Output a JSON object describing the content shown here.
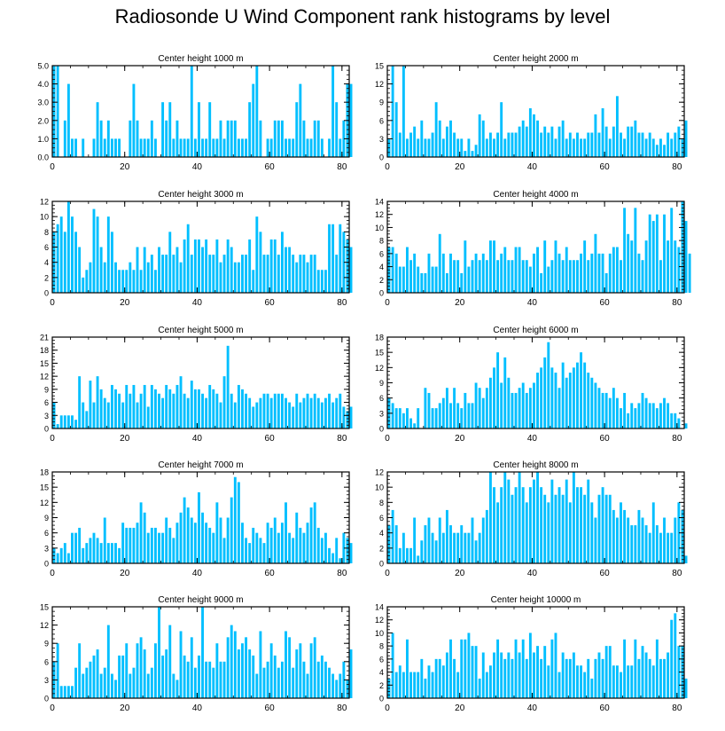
{
  "title": "Radiosonde U Wind Component rank histograms by level",
  "bar_color": "#00bfff",
  "chart_data": [
    {
      "type": "bar",
      "title": "Center height 1000 m",
      "xlim": [
        0,
        82
      ],
      "ylim": [
        0,
        5
      ],
      "xticks": [
        0,
        20,
        40,
        60,
        80
      ],
      "yticks": [
        0,
        1,
        2,
        3,
        4,
        5
      ],
      "ytick_labels": [
        "0.0",
        "1.0",
        "2.0",
        "3.0",
        "4.0",
        "5.0"
      ],
      "values": [
        5,
        5,
        0,
        2,
        4,
        1,
        1,
        0,
        1,
        0,
        0,
        1,
        3,
        2,
        1,
        2,
        1,
        1,
        1,
        0,
        0,
        2,
        4,
        2,
        1,
        1,
        1,
        2,
        1,
        0,
        3,
        2,
        3,
        1,
        2,
        1,
        1,
        1,
        5,
        1,
        3,
        1,
        1,
        3,
        1,
        1,
        2,
        1,
        2,
        2,
        2,
        1,
        1,
        1,
        3,
        4,
        5,
        2,
        0,
        1,
        1,
        2,
        2,
        2,
        1,
        1,
        1,
        3,
        4,
        2,
        1,
        1,
        2,
        2,
        1,
        0,
        1,
        5,
        3,
        1,
        2,
        4,
        4
      ]
    },
    {
      "type": "bar",
      "title": "Center height 2000 m",
      "xlim": [
        0,
        82
      ],
      "ylim": [
        0,
        15
      ],
      "xticks": [
        0,
        20,
        40,
        60,
        80
      ],
      "yticks": [
        0,
        3,
        6,
        9,
        12,
        15
      ],
      "ytick_labels": [
        "0",
        "3",
        "6",
        "9",
        "12",
        "15"
      ],
      "values": [
        3,
        15,
        9,
        4,
        15,
        3,
        4,
        5,
        3,
        6,
        3,
        3,
        4,
        9,
        6,
        3,
        5,
        6,
        4,
        3,
        3,
        1,
        3,
        1,
        2,
        7,
        6,
        3,
        4,
        3,
        4,
        9,
        3,
        4,
        4,
        4,
        5,
        6,
        5,
        8,
        7,
        6,
        4,
        5,
        4,
        5,
        3,
        5,
        6,
        3,
        4,
        3,
        4,
        3,
        3,
        4,
        4,
        7,
        4,
        8,
        5,
        3,
        5,
        10,
        4,
        3,
        5,
        5,
        6,
        4,
        4,
        3,
        4,
        3,
        2,
        3,
        2,
        4,
        3,
        4,
        5,
        3,
        6
      ]
    },
    {
      "type": "bar",
      "title": "Center height 3000 m",
      "xlim": [
        0,
        82
      ],
      "ylim": [
        0,
        12
      ],
      "xticks": [
        0,
        20,
        40,
        60,
        80
      ],
      "yticks": [
        0,
        2,
        4,
        6,
        8,
        10,
        12
      ],
      "ytick_labels": [
        "0",
        "2",
        "4",
        "6",
        "8",
        "10",
        "12"
      ],
      "values": [
        8,
        9,
        10,
        8,
        12,
        10,
        8,
        6,
        2,
        3,
        4,
        11,
        10,
        6,
        4,
        10,
        8,
        4,
        3,
        3,
        3,
        4,
        3,
        6,
        3,
        6,
        4,
        5,
        3,
        6,
        5,
        5,
        8,
        5,
        6,
        4,
        7,
        9,
        5,
        7,
        7,
        6,
        7,
        5,
        5,
        7,
        4,
        5,
        7,
        6,
        4,
        4,
        5,
        5,
        7,
        3,
        10,
        8,
        5,
        5,
        7,
        7,
        5,
        8,
        6,
        6,
        5,
        4,
        5,
        5,
        4,
        5,
        5,
        3,
        3,
        3,
        9,
        9,
        5,
        9,
        8,
        7,
        6
      ]
    },
    {
      "type": "bar",
      "title": "Center height 4000 m",
      "xlim": [
        0,
        82
      ],
      "ylim": [
        0,
        14
      ],
      "xticks": [
        0,
        20,
        40,
        60,
        80
      ],
      "yticks": [
        0,
        2,
        4,
        6,
        8,
        10,
        12,
        14
      ],
      "ytick_labels": [
        "0",
        "2",
        "4",
        "6",
        "8",
        "10",
        "12",
        "14"
      ],
      "values": [
        7,
        7,
        6,
        4,
        4,
        7,
        5,
        6,
        4,
        3,
        3,
        6,
        4,
        4,
        9,
        6,
        3,
        6,
        5,
        5,
        3,
        8,
        4,
        5,
        6,
        5,
        6,
        5,
        8,
        8,
        5,
        6,
        7,
        5,
        5,
        7,
        7,
        5,
        5,
        4,
        6,
        7,
        3,
        8,
        4,
        5,
        8,
        6,
        5,
        7,
        5,
        5,
        5,
        6,
        8,
        5,
        6,
        9,
        6,
        6,
        3,
        6,
        7,
        7,
        5,
        13,
        9,
        8,
        13,
        6,
        5,
        8,
        12,
        11,
        12,
        5,
        12,
        8,
        13,
        8,
        7,
        14,
        11,
        6
      ]
    },
    {
      "type": "bar",
      "title": "Center height 5000 m",
      "xlim": [
        0,
        82
      ],
      "ylim": [
        0,
        21
      ],
      "xticks": [
        0,
        20,
        40,
        60,
        80
      ],
      "yticks": [
        0,
        3,
        6,
        9,
        12,
        15,
        18,
        21
      ],
      "ytick_labels": [
        "0",
        "3",
        "6",
        "9",
        "12",
        "15",
        "18",
        "21"
      ],
      "values": [
        6,
        1,
        3,
        3,
        3,
        3,
        2,
        12,
        6,
        4,
        11,
        6,
        12,
        9,
        7,
        6,
        10,
        9,
        8,
        6,
        10,
        8,
        10,
        6,
        8,
        10,
        5,
        10,
        9,
        8,
        7,
        10,
        9,
        8,
        10,
        12,
        8,
        7,
        11,
        9,
        9,
        8,
        7,
        10,
        9,
        8,
        6,
        12,
        19,
        8,
        6,
        10,
        9,
        8,
        7,
        5,
        6,
        7,
        8,
        8,
        7,
        8,
        8,
        8,
        7,
        6,
        5,
        8,
        6,
        7,
        8,
        7,
        8,
        7,
        6,
        7,
        8,
        6,
        7,
        8,
        5,
        4,
        5
      ]
    },
    {
      "type": "bar",
      "title": "Center height 6000 m",
      "xlim": [
        0,
        82
      ],
      "ylim": [
        0,
        18
      ],
      "xticks": [
        0,
        20,
        40,
        60,
        80
      ],
      "yticks": [
        0,
        3,
        6,
        9,
        12,
        15,
        18
      ],
      "ytick_labels": [
        "0",
        "3",
        "6",
        "9",
        "12",
        "15",
        "18"
      ],
      "values": [
        6,
        5,
        4,
        4,
        3,
        4,
        2,
        1,
        4,
        0,
        8,
        7,
        4,
        4,
        5,
        6,
        8,
        5,
        8,
        5,
        4,
        7,
        5,
        5,
        9,
        8,
        6,
        8,
        10,
        12,
        15,
        9,
        14,
        10,
        7,
        7,
        8,
        9,
        7,
        8,
        9,
        11,
        12,
        14,
        17,
        12,
        11,
        8,
        13,
        10,
        11,
        12,
        13,
        15,
        13,
        11,
        10,
        9,
        8,
        7,
        7,
        6,
        8,
        6,
        4,
        7,
        3,
        5,
        4,
        5,
        7,
        6,
        5,
        5,
        4,
        5,
        6,
        5,
        3,
        3,
        2,
        0,
        1
      ]
    },
    {
      "type": "bar",
      "title": "Center height 7000 m",
      "xlim": [
        0,
        82
      ],
      "ylim": [
        0,
        18
      ],
      "xticks": [
        0,
        20,
        40,
        60,
        80
      ],
      "yticks": [
        0,
        3,
        6,
        9,
        12,
        15,
        18
      ],
      "ytick_labels": [
        "0",
        "3",
        "6",
        "9",
        "12",
        "15",
        "18"
      ],
      "values": [
        3,
        2,
        3,
        4,
        2,
        6,
        6,
        7,
        3,
        4,
        5,
        6,
        5,
        4,
        9,
        4,
        4,
        4,
        3,
        8,
        7,
        7,
        7,
        8,
        12,
        10,
        6,
        7,
        7,
        6,
        6,
        9,
        7,
        5,
        8,
        10,
        13,
        11,
        9,
        8,
        14,
        10,
        8,
        7,
        6,
        12,
        9,
        5,
        9,
        13,
        17,
        16,
        8,
        5,
        4,
        7,
        6,
        5,
        4,
        8,
        7,
        9,
        6,
        8,
        12,
        6,
        5,
        10,
        7,
        6,
        8,
        11,
        12,
        7,
        5,
        6,
        3,
        2,
        5,
        1,
        6,
        5,
        4
      ]
    },
    {
      "type": "bar",
      "title": "Center height 8000 m",
      "xlim": [
        0,
        82
      ],
      "ylim": [
        0,
        12
      ],
      "xticks": [
        0,
        20,
        40,
        60,
        80
      ],
      "yticks": [
        0,
        2,
        4,
        6,
        8,
        10,
        12
      ],
      "ytick_labels": [
        "0",
        "2",
        "4",
        "6",
        "8",
        "10",
        "12"
      ],
      "values": [
        5,
        7,
        5,
        2,
        4,
        2,
        2,
        6,
        1,
        3,
        5,
        6,
        4,
        3,
        6,
        4,
        7,
        5,
        4,
        4,
        5,
        4,
        4,
        6,
        3,
        4,
        6,
        7,
        12,
        10,
        8,
        10,
        12,
        11,
        9,
        10,
        12,
        10,
        8,
        10,
        11,
        12,
        10,
        9,
        8,
        11,
        9,
        10,
        9,
        11,
        8,
        12,
        10,
        10,
        9,
        11,
        8,
        6,
        9,
        10,
        9,
        9,
        7,
        6,
        8,
        7,
        6,
        5,
        5,
        7,
        6,
        5,
        4,
        8,
        5,
        4,
        6,
        4,
        4,
        6,
        8,
        7,
        1
      ]
    },
    {
      "type": "bar",
      "title": "Center height 9000 m",
      "xlim": [
        0,
        82
      ],
      "ylim": [
        0,
        15
      ],
      "xticks": [
        0,
        20,
        40,
        60,
        80
      ],
      "yticks": [
        0,
        3,
        6,
        9,
        12,
        15
      ],
      "ytick_labels": [
        "0",
        "3",
        "6",
        "9",
        "12",
        "15"
      ],
      "values": [
        6,
        9,
        2,
        2,
        2,
        2,
        5,
        9,
        4,
        5,
        6,
        7,
        8,
        4,
        5,
        12,
        4,
        3,
        7,
        7,
        9,
        4,
        5,
        9,
        10,
        8,
        4,
        5,
        9,
        15,
        7,
        8,
        12,
        4,
        3,
        11,
        7,
        6,
        10,
        5,
        7,
        15,
        6,
        6,
        5,
        9,
        6,
        6,
        10,
        12,
        11,
        8,
        9,
        10,
        8,
        7,
        4,
        11,
        5,
        6,
        9,
        7,
        5,
        6,
        11,
        10,
        5,
        8,
        9,
        6,
        4,
        9,
        10,
        6,
        7,
        6,
        5,
        4,
        3,
        4,
        6,
        3,
        8
      ]
    },
    {
      "type": "bar",
      "title": "Center height 10000 m",
      "xlim": [
        0,
        82
      ],
      "ylim": [
        0,
        14
      ],
      "xticks": [
        0,
        20,
        40,
        60,
        80
      ],
      "yticks": [
        0,
        2,
        4,
        6,
        8,
        10,
        12,
        14
      ],
      "ytick_labels": [
        "0",
        "2",
        "4",
        "6",
        "8",
        "10",
        "12",
        "14"
      ],
      "values": [
        3,
        10,
        4,
        5,
        4,
        9,
        4,
        4,
        4,
        6,
        3,
        5,
        4,
        6,
        6,
        5,
        7,
        9,
        6,
        4,
        9,
        9,
        10,
        8,
        8,
        3,
        7,
        4,
        5,
        7,
        9,
        7,
        6,
        7,
        6,
        9,
        7,
        9,
        6,
        10,
        7,
        8,
        6,
        8,
        5,
        9,
        10,
        4,
        7,
        6,
        6,
        7,
        5,
        5,
        4,
        6,
        3,
        6,
        7,
        6,
        8,
        8,
        5,
        5,
        4,
        9,
        5,
        5,
        9,
        6,
        8,
        7,
        6,
        5,
        9,
        6,
        6,
        7,
        12,
        13,
        8,
        8,
        3
      ]
    }
  ]
}
